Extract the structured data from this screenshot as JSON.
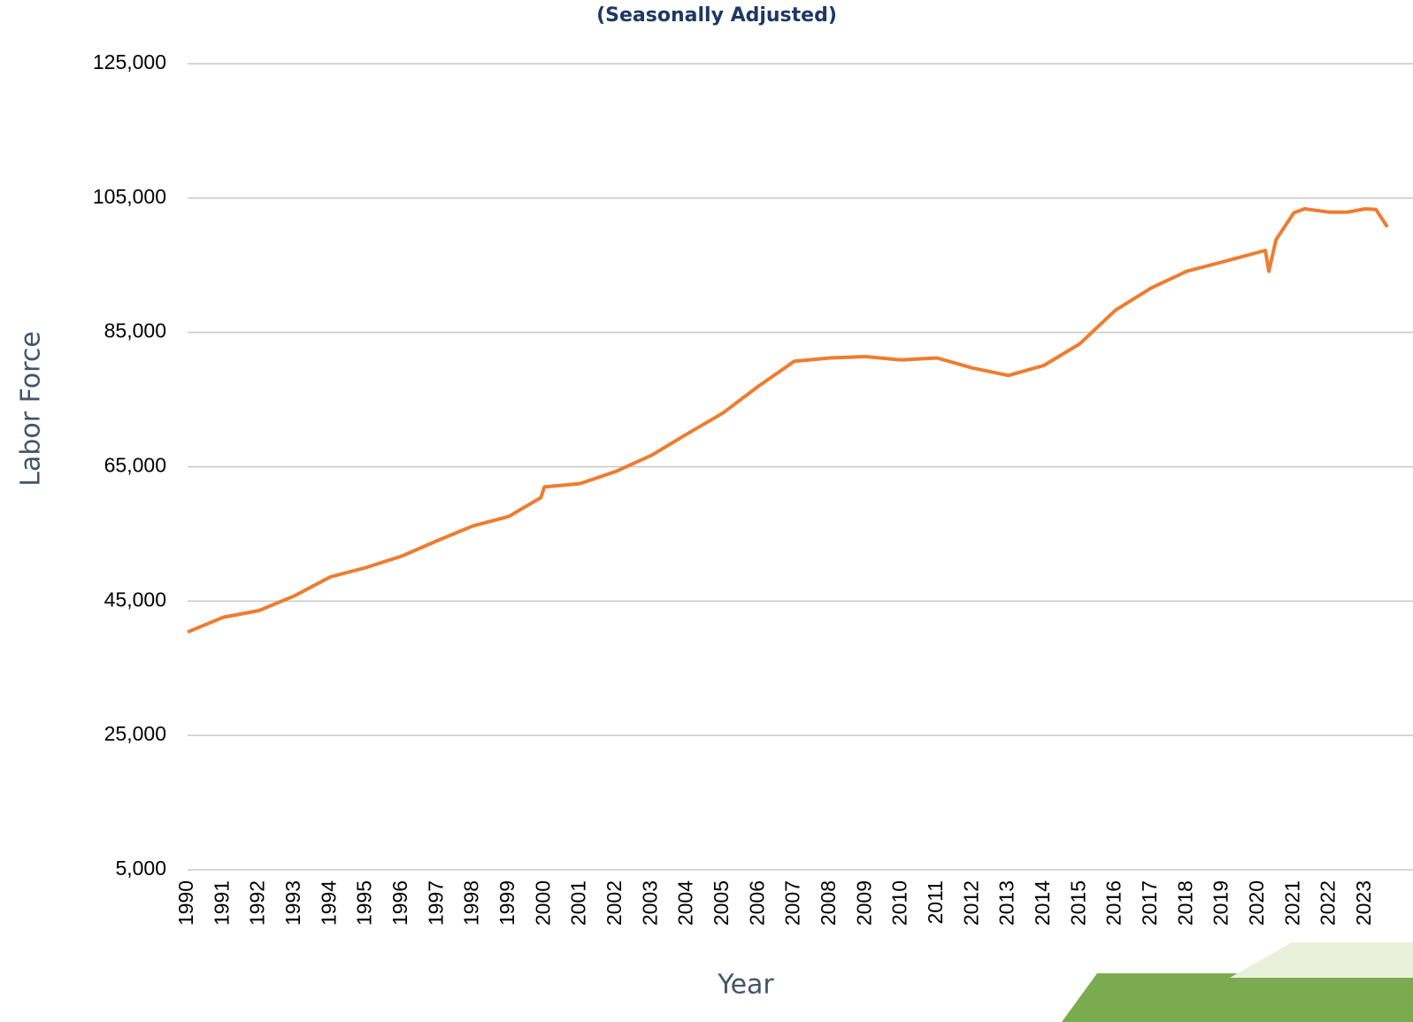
{
  "chart_data": {
    "type": "line",
    "title": "(Seasonally Adjusted)",
    "y_label": "Labor Force",
    "x_label": "Year",
    "x": [
      1990,
      1991,
      1992,
      1993,
      1994,
      1995,
      1996,
      1997,
      1998,
      1999,
      1999.9,
      2000,
      2001,
      2002,
      2003,
      2004,
      2005,
      2006,
      2007,
      2008,
      2009,
      2010,
      2011,
      2012,
      2013,
      2014,
      2015,
      2016,
      2017,
      2018,
      2019,
      2020.2,
      2020.3,
      2020.5,
      2021,
      2021.3,
      2022,
      2022.5,
      2023,
      2023.3,
      2023.62
    ],
    "series": [
      {
        "name": "Labor Force",
        "color": "#ed7d31",
        "values": [
          40400,
          42600,
          43600,
          45800,
          48600,
          50000,
          51700,
          54000,
          56200,
          57600,
          60400,
          62000,
          62500,
          64300,
          66700,
          69900,
          73000,
          77000,
          80700,
          81200,
          81400,
          80900,
          81200,
          79700,
          78600,
          80100,
          83300,
          88300,
          91600,
          94100,
          95500,
          97200,
          94100,
          98800,
          102800,
          103400,
          102900,
          102900,
          103400,
          103300,
          100700
        ]
      }
    ],
    "xlim": [
      1990,
      2023.62
    ],
    "xticks": [
      1990,
      1991,
      1992,
      1993,
      1994,
      1995,
      1996,
      1997,
      1998,
      1999,
      2000,
      2001,
      2002,
      2003,
      2004,
      2005,
      2006,
      2007,
      2008,
      2009,
      2010,
      2011,
      2012,
      2013,
      2014,
      2015,
      2016,
      2017,
      2018,
      2019,
      2020,
      2021,
      2022,
      2023
    ],
    "ylim": [
      5000,
      125000
    ],
    "yticks": [
      {
        "value": 5000,
        "label": "5,000"
      },
      {
        "value": 25000,
        "label": "25,000"
      },
      {
        "value": 45000,
        "label": "45,000"
      },
      {
        "value": 65000,
        "label": "65,000"
      },
      {
        "value": 85000,
        "label": "85,000"
      },
      {
        "value": 105000,
        "label": "105,000"
      },
      {
        "value": 125000,
        "label": "125,000"
      }
    ],
    "grid": true
  }
}
